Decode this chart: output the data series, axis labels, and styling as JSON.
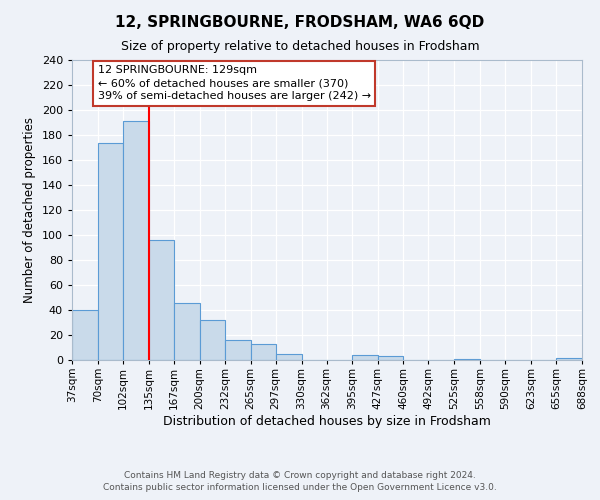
{
  "title": "12, SPRINGBOURNE, FRODSHAM, WA6 6QD",
  "subtitle": "Size of property relative to detached houses in Frodsham",
  "xlabel": "Distribution of detached houses by size in Frodsham",
  "ylabel": "Number of detached properties",
  "bar_left_edges": [
    37,
    70,
    102,
    135,
    167,
    200,
    232,
    265,
    297,
    330,
    362,
    395,
    427,
    460,
    492,
    525,
    558,
    590,
    623,
    655
  ],
  "bar_widths": [
    33,
    32,
    33,
    32,
    33,
    32,
    33,
    32,
    33,
    32,
    33,
    32,
    33,
    32,
    32,
    33,
    32,
    33,
    32,
    33
  ],
  "bar_heights": [
    40,
    174,
    191,
    96,
    46,
    32,
    16,
    13,
    5,
    0,
    0,
    4,
    3,
    0,
    0,
    1,
    0,
    0,
    0,
    2
  ],
  "bar_color": "#c9daea",
  "bar_edgecolor": "#5b9bd5",
  "tick_labels": [
    "37sqm",
    "70sqm",
    "102sqm",
    "135sqm",
    "167sqm",
    "200sqm",
    "232sqm",
    "265sqm",
    "297sqm",
    "330sqm",
    "362sqm",
    "395sqm",
    "427sqm",
    "460sqm",
    "492sqm",
    "525sqm",
    "558sqm",
    "590sqm",
    "623sqm",
    "655sqm",
    "688sqm"
  ],
  "ylim": [
    0,
    240
  ],
  "yticks": [
    0,
    20,
    40,
    60,
    80,
    100,
    120,
    140,
    160,
    180,
    200,
    220,
    240
  ],
  "red_line_x": 135,
  "annotation_box_text": "12 SPRINGBOURNE: 129sqm\n← 60% of detached houses are smaller (370)\n39% of semi-detached houses are larger (242) →",
  "background_color": "#eef2f8",
  "plot_bg_color": "#eef2f8",
  "footer_line1": "Contains HM Land Registry data © Crown copyright and database right 2024.",
  "footer_line2": "Contains public sector information licensed under the Open Government Licence v3.0.",
  "title_fontsize": 11,
  "subtitle_fontsize": 9,
  "xlabel_fontsize": 9,
  "ylabel_fontsize": 8.5,
  "tick_fontsize": 7.5,
  "footer_fontsize": 6.5,
  "ann_fontsize": 8
}
